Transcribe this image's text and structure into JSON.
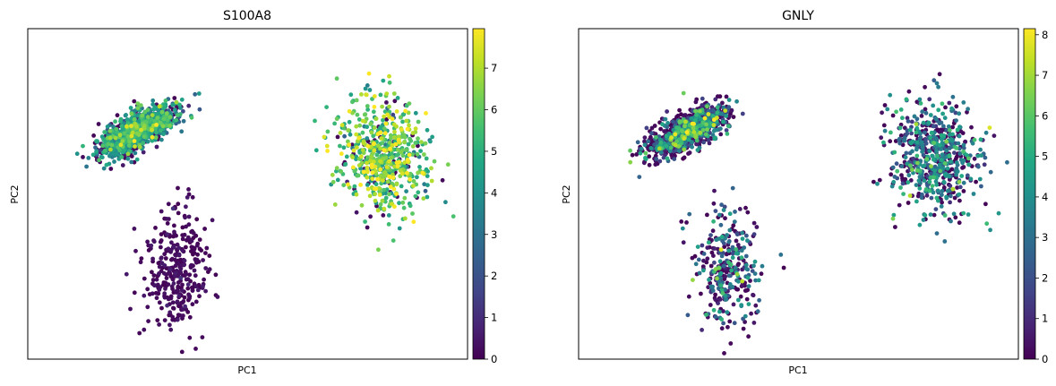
{
  "figure": {
    "background": "#ffffff"
  },
  "chart_data": [
    {
      "type": "scatter",
      "title": "S100A8",
      "xlabel": "PC1",
      "ylabel": "PC2",
      "xticks": "none",
      "yticks": "none",
      "grid": false,
      "colormap": "viridis",
      "colorbar": {
        "min": 0,
        "max": 7.95,
        "ticks": [
          "0",
          "1",
          "2",
          "3",
          "4",
          "5",
          "6",
          "7"
        ]
      },
      "clusters": [
        {
          "name": "upper-left",
          "cx": -0.5,
          "cy": 0.38,
          "sx": 0.1,
          "sy": 0.045,
          "tilt": 0.7,
          "n": 1150,
          "mean_value": 4.1,
          "spread_value": 1.3,
          "low_fraction": 0.22
        },
        {
          "name": "lower-middle",
          "cx": -0.32,
          "cy": -0.46,
          "sx": 0.075,
          "sy": 0.18,
          "tilt": 0.0,
          "n": 330,
          "mean_value": 0.15,
          "spread_value": 0.4,
          "low_fraction": 0.95
        },
        {
          "name": "right",
          "cx": 0.62,
          "cy": 0.22,
          "sx": 0.1,
          "sy": 0.17,
          "tilt": 0.1,
          "n": 620,
          "mean_value": 6.0,
          "spread_value": 1.3,
          "low_fraction": 0.12
        }
      ]
    },
    {
      "type": "scatter",
      "title": "GNLY",
      "xlabel": "PC1",
      "ylabel": "PC2",
      "xticks": "none",
      "yticks": "none",
      "grid": false,
      "colormap": "viridis",
      "colorbar": {
        "min": 0,
        "max": 8.15,
        "ticks": [
          "0",
          "1",
          "2",
          "3",
          "4",
          "5",
          "6",
          "7",
          "8"
        ]
      },
      "clusters": [
        {
          "name": "upper-left",
          "cx": -0.5,
          "cy": 0.38,
          "sx": 0.1,
          "sy": 0.045,
          "tilt": 0.7,
          "n": 1150,
          "mean_value": 2.6,
          "spread_value": 2.4,
          "low_fraction": 0.45
        },
        {
          "name": "lower-middle",
          "cx": -0.32,
          "cy": -0.46,
          "sx": 0.075,
          "sy": 0.18,
          "tilt": 0.0,
          "n": 330,
          "mean_value": 2.8,
          "spread_value": 1.6,
          "low_fraction": 0.5
        },
        {
          "name": "right",
          "cx": 0.62,
          "cy": 0.22,
          "sx": 0.1,
          "sy": 0.17,
          "tilt": 0.1,
          "n": 620,
          "mean_value": 3.4,
          "spread_value": 1.3,
          "low_fraction": 0.35
        }
      ]
    }
  ]
}
